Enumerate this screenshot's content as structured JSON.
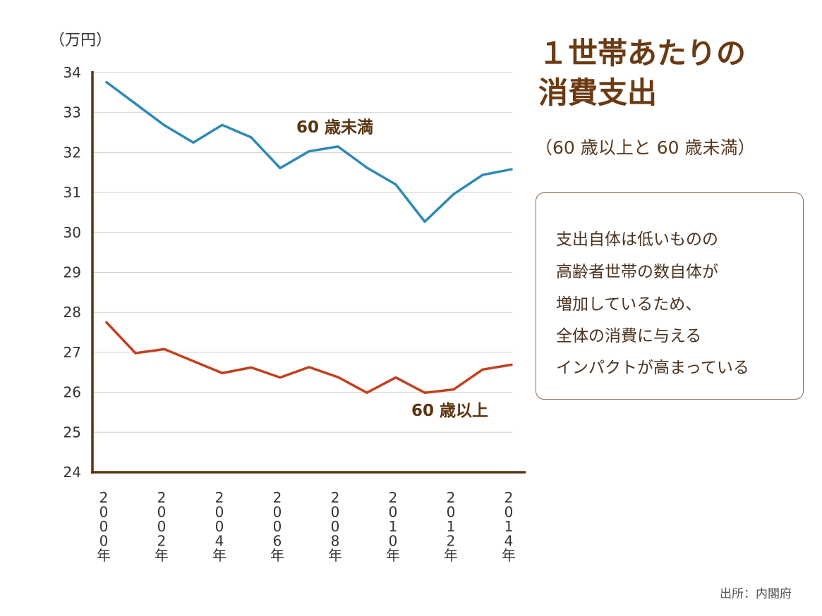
{
  "title": "１世帯あたりの\n消費支出",
  "subtitle": "（60 歳以上と 60 歳未満）",
  "note_lines": [
    "支出自体は低いものの",
    "高齢者世帯の数自体が",
    "増加しているため、",
    "全体の消費に与える",
    "インパクトが高まっている"
  ],
  "source": "出所：内閣府",
  "chart_data": {
    "type": "line",
    "ylabel": "（万円）",
    "ylim": [
      24,
      34
    ],
    "yticks": [
      "24",
      "25",
      "26",
      "27",
      "28",
      "29",
      "30",
      "31",
      "32",
      "33",
      "34"
    ],
    "x": [
      2000,
      2001,
      2002,
      2003,
      2004,
      2005,
      2006,
      2007,
      2008,
      2009,
      2010,
      2011,
      2012,
      2013,
      2014
    ],
    "xtick_labels": [
      {
        "x": 2000,
        "text": "2000年"
      },
      {
        "x": 2002,
        "text": "2002年"
      },
      {
        "x": 2004,
        "text": "2004年"
      },
      {
        "x": 2006,
        "text": "2006年"
      },
      {
        "x": 2008,
        "text": "2008年"
      },
      {
        "x": 2010,
        "text": "2010年"
      },
      {
        "x": 2012,
        "text": "2012年"
      },
      {
        "x": 2014,
        "text": "2014年"
      }
    ],
    "grid": true,
    "series": [
      {
        "name": "60 歳未満",
        "color": "#2e8ab5",
        "values": [
          33.76,
          33.22,
          32.68,
          32.25,
          32.69,
          32.38,
          31.61,
          32.03,
          32.15,
          31.62,
          31.2,
          30.27,
          30.96,
          31.44,
          31.58
        ]
      },
      {
        "name": "60 歳以上",
        "color": "#c1401f",
        "values": [
          27.75,
          26.98,
          27.08,
          26.78,
          26.48,
          26.62,
          26.37,
          26.63,
          26.38,
          25.99,
          26.37,
          25.99,
          26.07,
          26.57,
          26.69
        ]
      }
    ],
    "axis_color": "#5a3410"
  }
}
